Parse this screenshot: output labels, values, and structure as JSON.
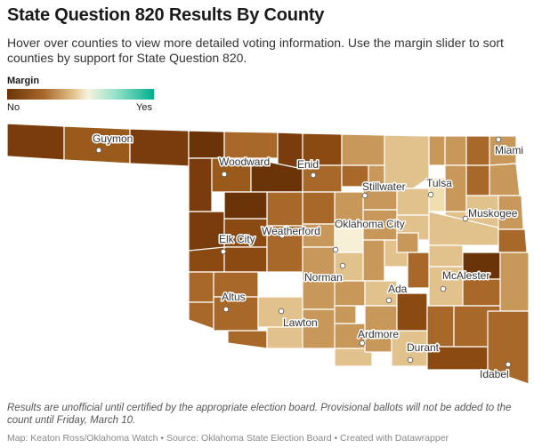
{
  "title": "State Question 820 Results By County",
  "description": "Hover over counties to view more detailed voting information. Use the margin slider to sort counties by support for State Question 820.",
  "legend": {
    "title": "Margin",
    "low_label": "No",
    "high_label": "Yes"
  },
  "colors": {
    "dark": "#6a3408",
    "mid_dark": "#8a4a12",
    "brown": "#a8682a",
    "tan": "#c8975a",
    "light_tan": "#e2c28c",
    "pale": "#f0ddb0",
    "cream": "#f7f0d6",
    "border": "#ffffff"
  },
  "cities": [
    {
      "name": "Guymon"
    },
    {
      "name": "Woodward"
    },
    {
      "name": "Enid"
    },
    {
      "name": "Miami"
    },
    {
      "name": "Stillwater"
    },
    {
      "name": "Tulsa"
    },
    {
      "name": "Muskogee"
    },
    {
      "name": "Oklahoma City"
    },
    {
      "name": "Elk City"
    },
    {
      "name": "Weatherford"
    },
    {
      "name": "Norman"
    },
    {
      "name": "McAlester"
    },
    {
      "name": "Altus"
    },
    {
      "name": "Ada"
    },
    {
      "name": "Lawton"
    },
    {
      "name": "Ardmore"
    },
    {
      "name": "Durant"
    },
    {
      "name": "Idabel"
    }
  ],
  "note": "Results are unofficial until certified by the appropriate election board. Provisional ballots will not be added to the count until Friday, March 10.",
  "footer": "Map: Keaton Ross/Oklahoma Watch • Source: Oklahoma State Election Board • Created with Datawrapper"
}
